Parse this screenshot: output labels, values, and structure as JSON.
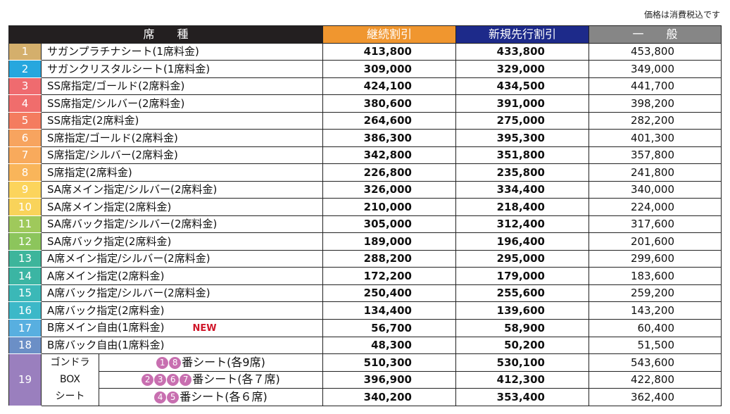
{
  "note": "価格は消費税込です",
  "table": {
    "headers": [
      "席　　種",
      "継続割引",
      "新規先行割引",
      "一　　般"
    ],
    "rows": [
      {
        "no": "1",
        "name": "サガンプラチナシート(1席料金)",
        "prices": [
          "413,800",
          "433,800",
          "453,800"
        ]
      },
      {
        "no": "2",
        "name": "サガンクリスタルシート(1席料金)",
        "prices": [
          "309,000",
          "329,000",
          "349,000"
        ]
      },
      {
        "no": "3",
        "name": "SS席指定/ゴールド(2席料金)",
        "prices": [
          "424,100",
          "434,500",
          "441,700"
        ]
      },
      {
        "no": "4",
        "name": "SS席指定/シルバー(2席料金)",
        "prices": [
          "380,600",
          "391,000",
          "398,200"
        ]
      },
      {
        "no": "5",
        "name": "SS席指定(2席料金)",
        "prices": [
          "264,600",
          "275,000",
          "282,200"
        ]
      },
      {
        "no": "6",
        "name": "S席指定/ゴールド(2席料金)",
        "prices": [
          "386,300",
          "395,300",
          "401,300"
        ]
      },
      {
        "no": "7",
        "name": "S席指定/シルバー(2席料金)",
        "prices": [
          "342,800",
          "351,800",
          "357,800"
        ]
      },
      {
        "no": "8",
        "name": "S席指定(2席料金)",
        "prices": [
          "226,800",
          "235,800",
          "241,800"
        ]
      },
      {
        "no": "9",
        "name": "SA席メイン指定/シルバー(2席料金)",
        "prices": [
          "326,000",
          "334,400",
          "340,000"
        ]
      },
      {
        "no": "10",
        "name": "SA席メイン指定(2席料金)",
        "prices": [
          "210,000",
          "218,400",
          "224,000"
        ]
      },
      {
        "no": "11",
        "name": "SA席バック指定/シルバー(2席料金)",
        "prices": [
          "305,000",
          "312,400",
          "317,600"
        ]
      },
      {
        "no": "12",
        "name": "SA席バック指定(2席料金)",
        "prices": [
          "189,000",
          "196,400",
          "201,600"
        ]
      },
      {
        "no": "13",
        "name": "A席メイン指定/シルバー(2席料金)",
        "prices": [
          "288,200",
          "295,000",
          "299,600"
        ]
      },
      {
        "no": "14",
        "name": "A席メイン指定(2席料金)",
        "prices": [
          "172,200",
          "179,000",
          "183,600"
        ]
      },
      {
        "no": "15",
        "name": "A席バック指定/シルバー(2席料金)",
        "prices": [
          "250,400",
          "255,600",
          "259,200"
        ]
      },
      {
        "no": "16",
        "name": "A席バック指定(2席料金)",
        "prices": [
          "134,400",
          "139,600",
          "143,200"
        ]
      },
      {
        "no": "17",
        "name": "B席メイン自由(1席料金)",
        "tag": "NEW",
        "prices": [
          "56,700",
          "58,900",
          "60,400"
        ]
      },
      {
        "no": "18",
        "name": "B席バック自由(1席料金)",
        "prices": [
          "48,300",
          "50,200",
          "51,500"
        ]
      }
    ],
    "group": {
      "no": "19",
      "name_lines": [
        "ゴンドラ",
        "BOX",
        "シート"
      ],
      "rows": [
        {
          "badges": [
            "1",
            "8"
          ],
          "label": "番シート(各9席)",
          "prices": [
            "510,300",
            "530,100",
            "543,600"
          ]
        },
        {
          "badges": [
            "2",
            "3",
            "6",
            "7"
          ],
          "label": "番シート(各７席)",
          "prices": [
            "396,900",
            "412,300",
            "422,800"
          ]
        },
        {
          "badges": [
            "4",
            "5"
          ],
          "label": "番シート(各６席)",
          "prices": [
            "340,200",
            "353,400",
            "362,400"
          ]
        }
      ]
    }
  }
}
